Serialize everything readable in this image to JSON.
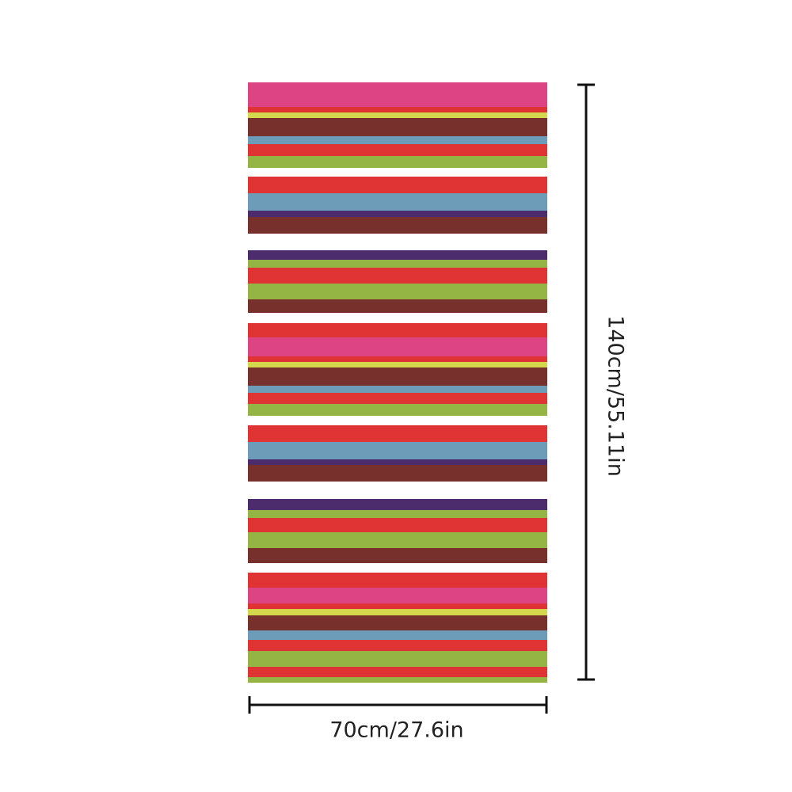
{
  "width_label": "70cm/27.6in",
  "height_label": "140cm/55.11in"
}
